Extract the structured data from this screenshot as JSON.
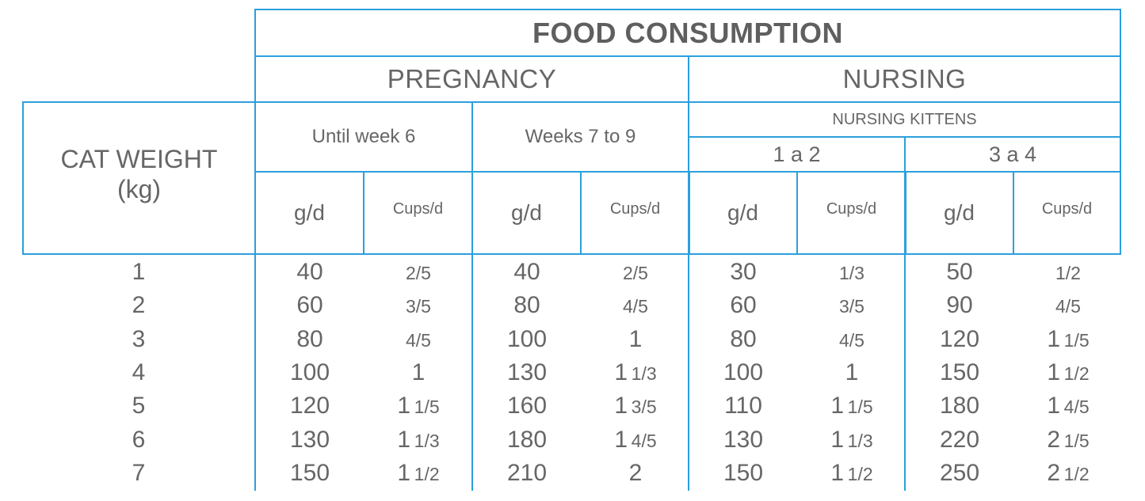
{
  "title": "FOOD CONSUMPTION",
  "phases": {
    "pregnancy": "PREGNANCY",
    "nursing": "NURSING"
  },
  "cat_weight_label": [
    "CAT WEIGHT",
    "(kg)"
  ],
  "pregnancy_periods": [
    "Until week 6",
    "Weeks 7 to 9"
  ],
  "nursing_kittens_label": "NURSING KITTENS",
  "kitten_groups": [
    "1 a 2",
    "3 a 4"
  ],
  "units": [
    "g/d",
    "Cups/d",
    "g/d",
    "Cups/d",
    "g/d",
    "Cups/d",
    "g/d",
    "Cups/d"
  ],
  "rows": [
    {
      "weight": "1",
      "values": [
        "40",
        "2/5",
        "40",
        "2/5",
        "30",
        "1/3",
        "50",
        "1/2"
      ]
    },
    {
      "weight": "2",
      "values": [
        "60",
        "3/5",
        "80",
        "4/5",
        "60",
        "3/5",
        "90",
        "4/5"
      ]
    },
    {
      "weight": "3",
      "values": [
        "80",
        "4/5",
        "100",
        "1",
        "80",
        "4/5",
        "120",
        "1 1/5"
      ]
    },
    {
      "weight": "4",
      "values": [
        "100",
        "1",
        "130",
        "1 1/3",
        "100",
        "1",
        "150",
        "1 1/2"
      ]
    },
    {
      "weight": "5",
      "values": [
        "120",
        "1 1/5",
        "160",
        "1 3/5",
        "110",
        "1 1/5",
        "180",
        "1 4/5"
      ]
    },
    {
      "weight": "6",
      "values": [
        "130",
        "1 1/3",
        "180",
        "1 4/5",
        "130",
        "1 1/3",
        "220",
        "2 1/5"
      ]
    },
    {
      "weight": "7",
      "values": [
        "150",
        "1 1/2",
        "210",
        "2",
        "150",
        "1 1/2",
        "250",
        "2 1/2"
      ]
    }
  ],
  "colors": {
    "border": "#2ba0dc",
    "text": "#666666"
  }
}
